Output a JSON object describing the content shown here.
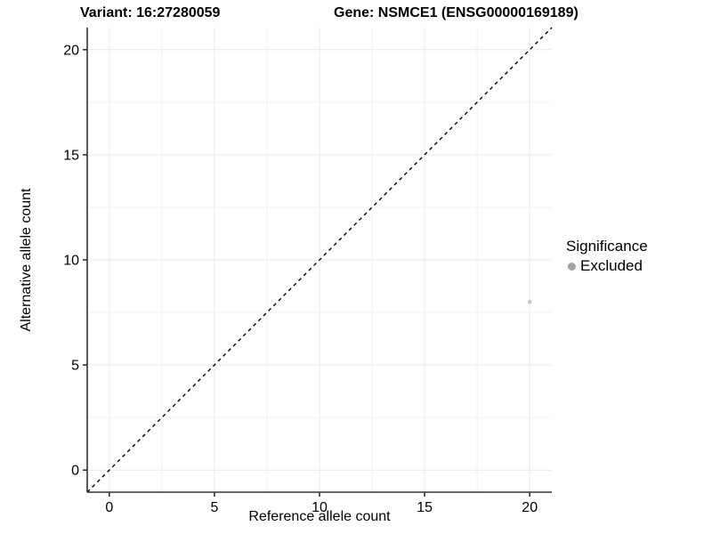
{
  "titles": {
    "variant": "Variant: 16:27280059",
    "gene": "Gene: NSMCE1 (ENSG00000169189)"
  },
  "axes": {
    "x_label": "Reference allele count",
    "y_label": "Alternative allele count"
  },
  "legend": {
    "title": "Significance",
    "items": [
      {
        "label": "Excluded",
        "key_color": "#a3a3a3"
      }
    ]
  },
  "colors": {
    "background": "#ffffff",
    "axis_line": "#333333",
    "tick_mark": "#333333",
    "tick_label": "#000000",
    "grid_major": "#e9e9e9",
    "grid_minor": "#f2f2f2",
    "identity_line": "#000000",
    "point": "#c4c4c4"
  },
  "chart_data": {
    "type": "scatter",
    "title": "Variant: 16:27280059 — Gene: NSMCE1 (ENSG00000169189)",
    "xlabel": "Reference allele count",
    "ylabel": "Alternative allele count",
    "xlim": [
      -1.05,
      21.05
    ],
    "ylim": [
      -1.05,
      21.05
    ],
    "x_ticks": [
      0,
      5,
      10,
      15,
      20
    ],
    "y_ticks": [
      0,
      5,
      10,
      15,
      20
    ],
    "x_minor_ticks": [
      2.5,
      7.5,
      12.5,
      17.5
    ],
    "y_minor_ticks": [
      2.5,
      7.5,
      12.5,
      17.5
    ],
    "grid": true,
    "legend_position": "right",
    "identity_line": {
      "style": "dashed",
      "slope": 1,
      "intercept": 0,
      "from": -1.05,
      "to": 21.05
    },
    "series": [
      {
        "name": "Excluded",
        "color": "#c4c4c4",
        "point_radius": 2.3,
        "points": [
          {
            "x": 20,
            "y": 8
          }
        ]
      }
    ]
  }
}
